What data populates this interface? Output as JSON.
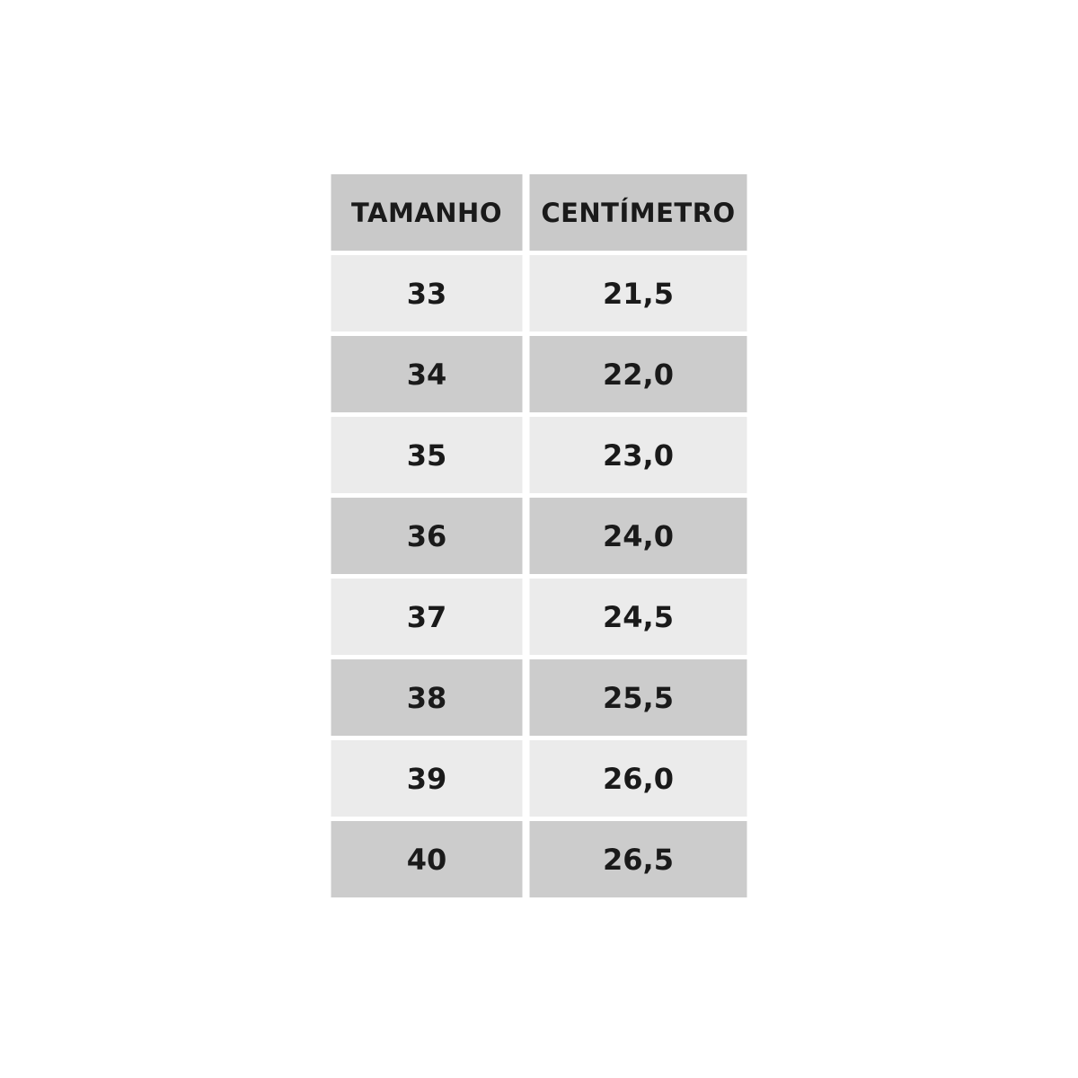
{
  "chart_data": {
    "type": "table",
    "title": "",
    "columns": [
      "TAMANHO",
      "CENTÍMETRO"
    ],
    "rows": [
      {
        "size": "33",
        "cm": "21,5"
      },
      {
        "size": "34",
        "cm": "22,0"
      },
      {
        "size": "35",
        "cm": "23,0"
      },
      {
        "size": "36",
        "cm": "24,0"
      },
      {
        "size": "37",
        "cm": "24,5"
      },
      {
        "size": "38",
        "cm": "25,5"
      },
      {
        "size": "39",
        "cm": "26,0"
      },
      {
        "size": "40",
        "cm": "26,5"
      }
    ],
    "layout": {
      "striped": true,
      "first_data_row_shade": "light",
      "grid": "white gaps between cells"
    }
  },
  "table": {
    "headers": {
      "col1": "TAMANHO",
      "col2": "CENTÍMETRO"
    },
    "rows": [
      {
        "size": "33",
        "cm": "21,5"
      },
      {
        "size": "34",
        "cm": "22,0"
      },
      {
        "size": "35",
        "cm": "23,0"
      },
      {
        "size": "36",
        "cm": "24,0"
      },
      {
        "size": "37",
        "cm": "24,5"
      },
      {
        "size": "38",
        "cm": "25,5"
      },
      {
        "size": "39",
        "cm": "26,0"
      },
      {
        "size": "40",
        "cm": "26,5"
      }
    ]
  },
  "colors": {
    "page_background": "#ffffff",
    "header_background": "#c9c9c9",
    "row_light": "#ebebeb",
    "row_dark": "#cccccc",
    "text": "#1a1a1a"
  }
}
